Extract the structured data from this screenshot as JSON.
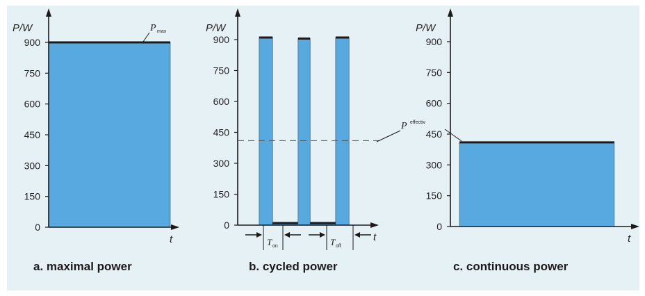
{
  "colors": {
    "panel_background": "#e6f1f5",
    "power_fill": "#57a9e0",
    "power_top_line": "#1a1a1a",
    "axis": "#1a1a1a",
    "dashed_line": "#555555"
  },
  "chart_data": [
    {
      "type": "area",
      "caption": "a.  maximal power",
      "ylabel": "P/W",
      "xlabel": "t",
      "yticks": [
        0,
        150,
        300,
        450,
        600,
        750,
        900
      ],
      "ylim": [
        0,
        1000
      ],
      "xlim": [
        0,
        10
      ],
      "series": [
        {
          "segments": [
            {
              "x_start": 0,
              "x_end": 10,
              "value": 900
            }
          ]
        }
      ],
      "annotations": [
        {
          "text": "P",
          "subscript": "max",
          "points_to_value": 900
        }
      ]
    },
    {
      "type": "area",
      "caption": "b.  cycled power",
      "ylabel": "P/W",
      "xlabel": "t",
      "yticks": [
        0,
        150,
        300,
        450,
        600,
        750,
        900
      ],
      "ylim": [
        0,
        1000
      ],
      "xlim": [
        0,
        10
      ],
      "series": [
        {
          "segments": [
            {
              "x_start": 0.0,
              "x_end": 1.6,
              "value": 0
            },
            {
              "x_start": 1.6,
              "x_end": 2.6,
              "value": 910
            },
            {
              "x_start": 2.6,
              "x_end": 4.5,
              "value": 10
            },
            {
              "x_start": 4.5,
              "x_end": 5.4,
              "value": 905
            },
            {
              "x_start": 5.4,
              "x_end": 7.3,
              "value": 10
            },
            {
              "x_start": 7.3,
              "x_end": 8.3,
              "value": 910
            },
            {
              "x_start": 8.3,
              "x_end": 10.0,
              "value": 0
            }
          ]
        }
      ],
      "reference_line": {
        "value": 410,
        "style": "dashed"
      },
      "annotations": [
        {
          "text": "P",
          "subscript": "effectiv",
          "points_to_value": 410
        },
        {
          "text": "T",
          "subscript": "on"
        },
        {
          "text": "T",
          "subscript": "off"
        }
      ]
    },
    {
      "type": "area",
      "caption": "c.  continuous power",
      "ylabel": "P/W",
      "xlabel": "t",
      "yticks": [
        0,
        150,
        300,
        450,
        600,
        750,
        900
      ],
      "ylim": [
        0,
        1000
      ],
      "xlim": [
        0,
        10
      ],
      "series": [
        {
          "segments": [
            {
              "x_start": 0.0,
              "x_end": 0.5,
              "value": 0
            },
            {
              "x_start": 0.5,
              "x_end": 9.0,
              "value": 410
            },
            {
              "x_start": 9.0,
              "x_end": 10.0,
              "value": 0
            }
          ]
        }
      ],
      "annotations": []
    }
  ]
}
